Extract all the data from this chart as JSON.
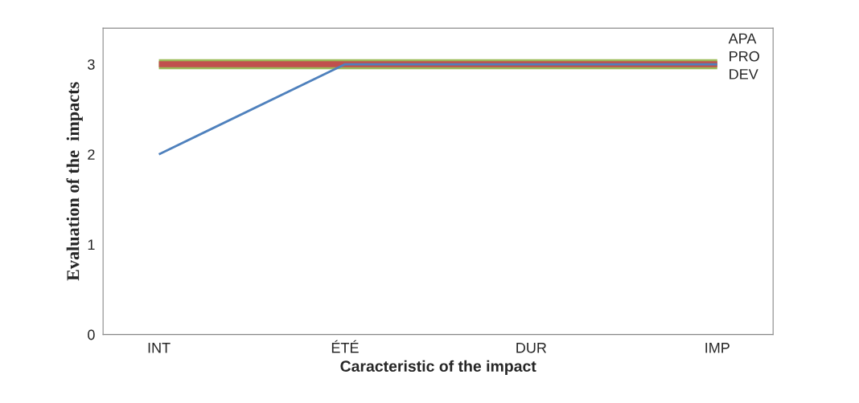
{
  "chart_data": {
    "type": "line",
    "xlabel": "Caracteristic of the impact",
    "ylabel": "Evaluation of the  impacts",
    "categories": [
      "INT",
      "ÉTÉ",
      "DUR",
      "IMP"
    ],
    "series": [
      {
        "name": "APA",
        "color": "#9bbb59",
        "values": [
          3,
          3,
          3,
          3
        ]
      },
      {
        "name": "PRO",
        "color": "#c0504d",
        "values": [
          3,
          3,
          3,
          3
        ]
      },
      {
        "name": "DEV",
        "color": "#4f81bd",
        "values": [
          2,
          3,
          3,
          3
        ]
      }
    ],
    "ylim": [
      0,
      3.4
    ],
    "yticks": [
      0,
      1,
      2,
      3
    ],
    "grid": false,
    "marker": "none",
    "line_style": "solid"
  }
}
